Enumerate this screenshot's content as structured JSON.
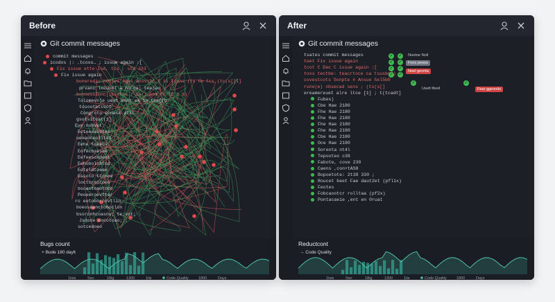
{
  "before": {
    "title": "Before",
    "header_label": "Git commit messages",
    "code_lines": [
      "commit messages",
      "icodos |: .tcoxo… ; issue again :[",
      "Fix issue ette Ise, tcs . sta  333",
      "Fix issue again",
      "boneredic hobles ages anos)tr,t  is lcons (ts he tcs.(tc(s[]1]",
      "prvanc locuont a  ho ba; tee;ao",
      "bonnessionc[;bsotso ; ia ; iox ho tb   i  h)",
      "Tolomevn]e ueot ahnt ea  in   tea[(b",
      "tosootatcoot",
      "Conprcto ecnesk atlt",
      "gsotsitcat(1]",
      "Eve:nohvet",
      "Eeteeoaootes",
      "uevanceolltet",
      "Eehe tokeov",
      "Eofecbxesoe",
      "Eefeesoxdeot",
      "Eehobolohtcd",
      "Eoteldtoeae",
      "Essoto ttcnoe",
      "loctcrsotoco",
      "bsoaotcaotoco",
      "Peoeeroevtter",
      "ro eotoborccvtlio",
      "boeosoanctoboclon",
      "bsoronhcoasnu;  te;vot;  :",
      "Jsdcoe docotoao;  ;",
      "sotcedoeo"
    ],
    "chart": {
      "title": "Bugs count",
      "subtitle": "+ Bude 180 daylt",
      "x_labels": [
        "1tsis",
        "Sso",
        "18ig",
        "1300",
        "1tis"
      ],
      "legend": "Code Quality",
      "x_labels_right": [
        "1800",
        "Days"
      ]
    }
  },
  "after": {
    "title": "After",
    "header_label": "Git commit messages",
    "code_lines": [
      "tsates commit messages",
      "teet  Fix issue again",
      "tcot  C Dac  C issue again :[",
      "toxs  tectbe: teacrtoce ca tsusbo2)",
      "covestcots  Sonpte # Ansue Sel5b0",
      "rune(e)  nbsecad sens ; (ts(s[]",
      "ereamereuet  alre ltce [1] ; t(tcadt]",
      "Fubes)",
      "Cbe Hae 2180",
      "Fhe Hae 2180",
      "Fhe Hae 2180",
      "Fhe Hae 2180",
      "Fhe Hae 2180",
      "Cbe Hae 2180",
      "Oce Hae 2180",
      "Sorenta nt4l",
      "Tepooteo c38",
      "Fabote, cove 230",
      "Caens  ,con+tAS8",
      "Bopoetote: 2t38 330 ;",
      "Roucet beet  Fae daot2et (pfl1x)",
      "Feotes",
      "Fobcaootcr  rolltaa (pf2x)",
      "Pontacaeie ,ent  en  0ruat"
    ],
    "tags": [
      {
        "text": "Nootoe Noll",
        "style": "plain"
      },
      {
        "text": "Fooc pesos",
        "style": "grey"
      },
      {
        "text": "Noel gevnta",
        "style": "red"
      },
      {
        "text": "Uselt Ifeeil",
        "style": "plain"
      },
      {
        "text": "Fear ggevnds",
        "style": "red"
      }
    ],
    "chart": {
      "title": "Reductcont",
      "subtitle": "→ Code Quality",
      "x_labels": [
        "1tsis",
        "Sso",
        "18ig",
        "1300",
        "1tis"
      ],
      "legend": "Code Quality",
      "x_labels_right": [
        "1800",
        "Days"
      ]
    }
  },
  "colors": {
    "panel_bg": "#1c1f26",
    "accent_red": "#e04a4a",
    "accent_green": "#3fb950",
    "chart_teal": "#3aa394"
  },
  "icons": [
    "list-icon",
    "home-icon",
    "bell-icon",
    "folder-icon",
    "box-icon",
    "shield-icon",
    "user-icon",
    "person-icon",
    "close-icon",
    "github-icon"
  ]
}
